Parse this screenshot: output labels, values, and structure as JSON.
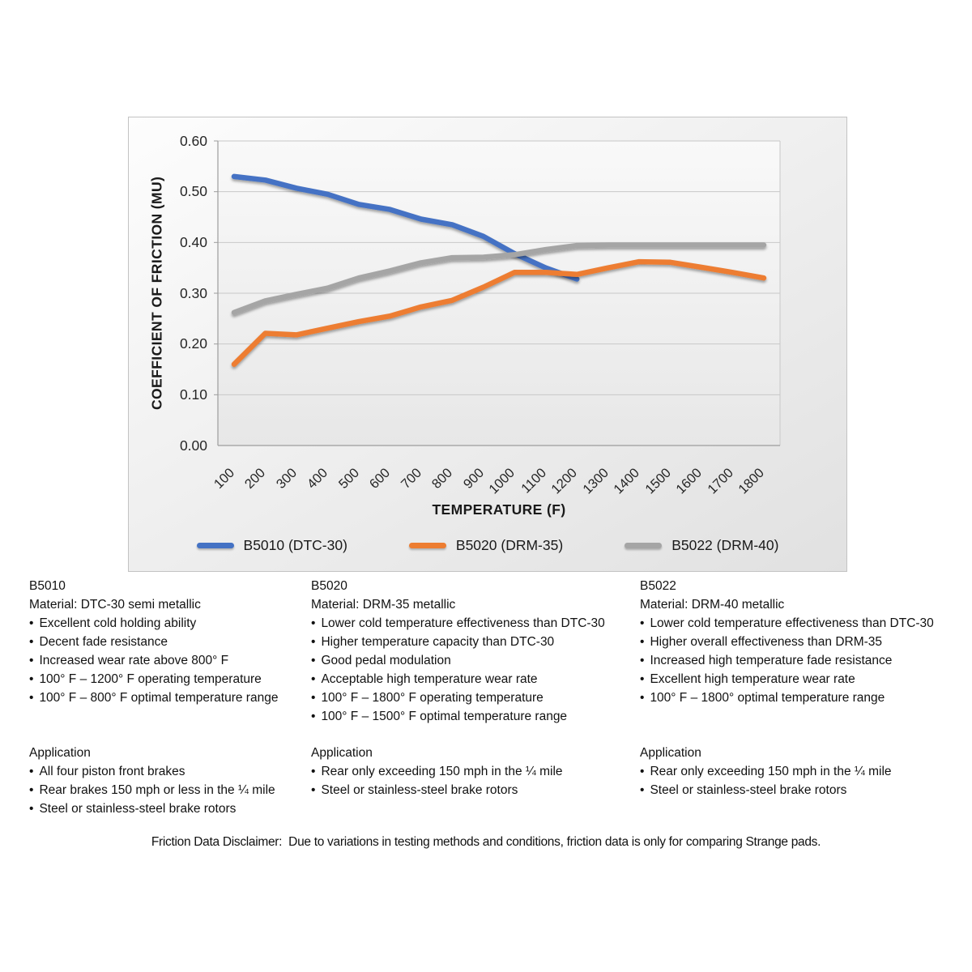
{
  "chart": {
    "y_axis_title": "COEFFICIENT OF FRICTION (MU)",
    "x_axis_title": "TEMPERATURE (F)",
    "y_ticks": [
      "0.60",
      "0.50",
      "0.40",
      "0.30",
      "0.20",
      "0.10",
      "0.00"
    ]
  },
  "chart_data": {
    "type": "line",
    "x": [
      100,
      200,
      300,
      400,
      500,
      600,
      700,
      800,
      900,
      1000,
      1100,
      1200,
      1300,
      1400,
      1500,
      1600,
      1700,
      1800
    ],
    "series": [
      {
        "name": "B5010 (DTC-30)",
        "color": "#4472C4",
        "values": [
          0.53,
          0.523,
          0.507,
          0.495,
          0.475,
          0.465,
          0.446,
          0.435,
          0.412,
          0.378,
          0.35,
          0.328
        ]
      },
      {
        "name": "B5020 (DRM-35)",
        "color": "#ED7D31",
        "values": [
          0.16,
          0.221,
          0.218,
          0.231,
          0.244,
          0.255,
          0.273,
          0.286,
          0.312,
          0.341,
          0.341,
          0.337,
          0.35,
          0.362,
          0.361,
          0.351,
          0.341,
          0.33
        ]
      },
      {
        "name": "B5022 (DRM-40)",
        "color": "#A5A5A5",
        "values": [
          0.262,
          0.285,
          0.298,
          0.31,
          0.33,
          0.344,
          0.36,
          0.37,
          0.371,
          0.376,
          0.386,
          0.394,
          0.395,
          0.395,
          0.395,
          0.395,
          0.395,
          0.395
        ]
      }
    ],
    "title": "",
    "xlabel": "TEMPERATURE (F)",
    "ylabel": "COEFFICIENT OF FRICTION (MU)",
    "ylim": [
      0,
      0.6
    ],
    "y_tick_step": 0.1,
    "grid": true,
    "legend_position": "bottom"
  },
  "columns": [
    {
      "model": "B5010",
      "material": "Material: DTC-30 semi metallic",
      "bullets": [
        "Excellent cold holding ability",
        "Decent fade resistance",
        "Increased wear rate above 800° F",
        "100° F – 1200° F operating temperature",
        "100° F – 800° F optimal temperature range"
      ],
      "application_title": "Application",
      "application_bullets": [
        "All four piston front brakes",
        "Rear brakes 150 mph or less in the ¼ mile",
        "Steel or stainless-steel brake rotors"
      ]
    },
    {
      "model": "B5020",
      "material": "Material: DRM-35 metallic",
      "bullets": [
        "Lower cold temperature effectiveness than DTC-30",
        "Higher temperature capacity than DTC-30",
        "Good pedal modulation",
        "Acceptable high temperature wear rate",
        "100° F – 1800° F operating temperature",
        "100° F – 1500° F optimal temperature range"
      ],
      "application_title": "Application",
      "application_bullets": [
        "Rear only exceeding 150 mph in the ¼ mile",
        "Steel or stainless-steel brake rotors"
      ]
    },
    {
      "model": "B5022",
      "material": "Material: DRM-40 metallic",
      "bullets": [
        "Lower cold temperature effectiveness than DTC-30",
        "Higher overall effectiveness than DRM-35",
        "Increased high temperature fade resistance",
        "Excellent high temperature wear rate",
        "100° F – 1800° optimal temperature range"
      ],
      "application_title": "Application",
      "application_bullets": [
        "Rear only exceeding 150 mph in the ¼ mile",
        "Steel or stainless-steel brake rotors"
      ]
    }
  ],
  "disclaimer": "Friction Data Disclaimer:  Due to variations in testing methods and conditions, friction data is only for comparing Strange pads."
}
